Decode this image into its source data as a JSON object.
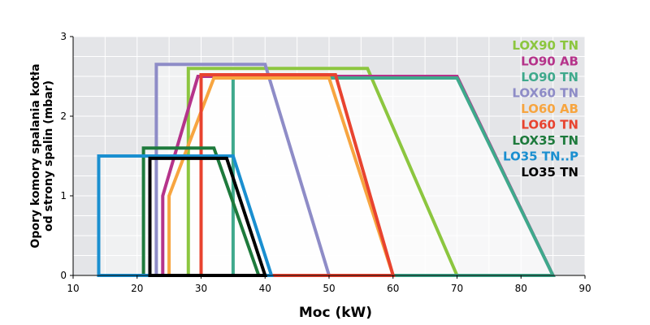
{
  "chart_data": {
    "type": "area",
    "xlabel": "Moc (kW)",
    "ylabel_lines": [
      "Opory komory spalania kotła",
      "od strony spalin (mbar)"
    ],
    "xlim": [
      10,
      90
    ],
    "ylim": [
      0,
      3
    ],
    "x_ticks": [
      "10",
      "20",
      "30",
      "40",
      "50",
      "60",
      "70",
      "80",
      "90"
    ],
    "y_ticks": [
      "0",
      "1",
      "2",
      "3"
    ],
    "grid": true,
    "legend_position": "top-right",
    "series": [
      {
        "name": "LOX90 TN",
        "color": "#8cc63f",
        "points": [
          [
            28,
            0
          ],
          [
            28,
            2.6
          ],
          [
            56,
            2.6
          ],
          [
            70,
            0
          ]
        ]
      },
      {
        "name": "LO90 AB",
        "color": "#b5338a",
        "points": [
          [
            24,
            0
          ],
          [
            24,
            1
          ],
          [
            29.5,
            2.5
          ],
          [
            70,
            2.5
          ],
          [
            85,
            0
          ]
        ]
      },
      {
        "name": "LO90 TN",
        "color": "#3fa98c",
        "points": [
          [
            35,
            0
          ],
          [
            35,
            2.48
          ],
          [
            70,
            2.48
          ],
          [
            85,
            0
          ]
        ]
      },
      {
        "name": "LOX60 TN",
        "color": "#8e8cc7",
        "points": [
          [
            23,
            0
          ],
          [
            23,
            2.65
          ],
          [
            40,
            2.65
          ],
          [
            50,
            0
          ]
        ]
      },
      {
        "name": "LO60 AB",
        "color": "#f7a540",
        "points": [
          [
            25,
            0
          ],
          [
            25,
            1
          ],
          [
            32,
            2.48
          ],
          [
            50,
            2.48
          ],
          [
            60,
            0
          ]
        ]
      },
      {
        "name": "LO60 TN",
        "color": "#e8432f",
        "points": [
          [
            30,
            0
          ],
          [
            30,
            2.52
          ],
          [
            51,
            2.52
          ],
          [
            60,
            0
          ]
        ]
      },
      {
        "name": "LOX35 TN",
        "color": "#1e7a3c",
        "points": [
          [
            21,
            0
          ],
          [
            21,
            1.6
          ],
          [
            32,
            1.6
          ],
          [
            39,
            0
          ]
        ]
      },
      {
        "name": "LO35 TN..P",
        "color": "#1a8fd0",
        "points": [
          [
            14,
            0
          ],
          [
            14,
            1.5
          ],
          [
            35,
            1.5
          ],
          [
            41,
            0
          ]
        ]
      },
      {
        "name": "LO35 TN",
        "color": "#000000",
        "points": [
          [
            22,
            0
          ],
          [
            22,
            1.47
          ],
          [
            34,
            1.47
          ],
          [
            40,
            0
          ]
        ]
      }
    ]
  }
}
